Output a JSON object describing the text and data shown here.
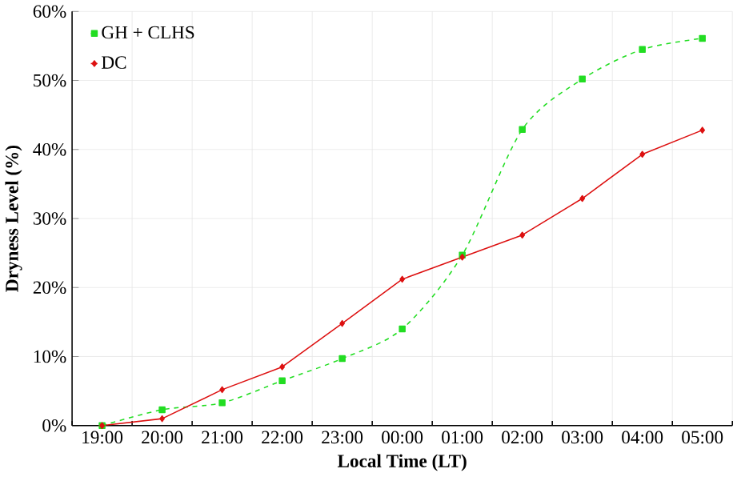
{
  "chart_data": {
    "type": "line",
    "xlabel": "Local Time (LT)",
    "ylabel": "Dryness Level (%)",
    "categories": [
      "19:00",
      "20:00",
      "21:00",
      "22:00",
      "23:00",
      "00:00",
      "01:00",
      "02:00",
      "03:00",
      "04:00",
      "05:00"
    ],
    "series": [
      {
        "name": "GH + CLHS",
        "color": "#22dd22",
        "marker": "square",
        "line_style": "dashed",
        "values": [
          0,
          2.3,
          3.3,
          6.5,
          9.7,
          14.0,
          24.7,
          42.9,
          50.2,
          54.5,
          56.1
        ]
      },
      {
        "name": "DC",
        "color": "#dd1111",
        "marker": "diamond",
        "line_style": "solid",
        "values": [
          0,
          1.0,
          5.2,
          8.5,
          14.8,
          21.2,
          24.4,
          27.6,
          32.9,
          39.3,
          42.8
        ]
      }
    ],
    "ylim": [
      0,
      60
    ],
    "yticks": [
      {
        "value": 0,
        "label": "0%"
      },
      {
        "value": 10,
        "label": "10%"
      },
      {
        "value": 20,
        "label": "20%"
      },
      {
        "value": 30,
        "label": "30%"
      },
      {
        "value": 40,
        "label": "40%"
      },
      {
        "value": 50,
        "label": "50%"
      },
      {
        "value": 60,
        "label": "60%"
      }
    ],
    "grid": true,
    "legend": "top left"
  }
}
